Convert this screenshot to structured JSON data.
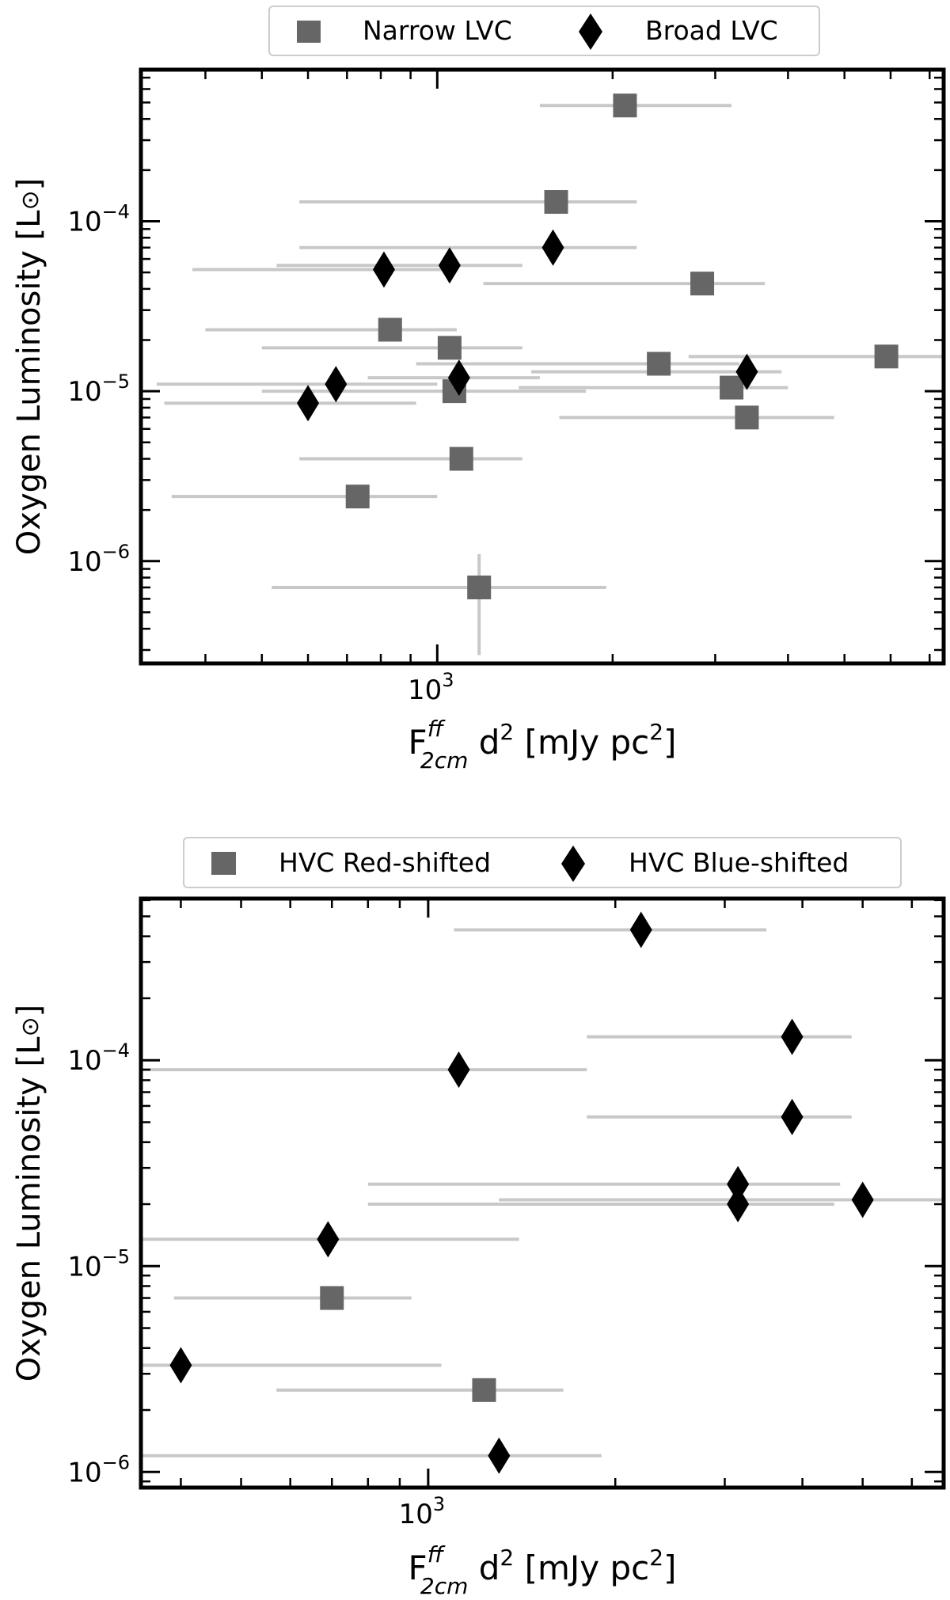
{
  "colors": {
    "square": "#666666",
    "diamond": "#000000",
    "errorbar": "#c8c8c8",
    "frame": "#000000"
  },
  "chart_data": [
    {
      "type": "scatter",
      "xscale": "log",
      "yscale": "log",
      "xlim": [
        310,
        7400
      ],
      "ylim": [
        2.5e-07,
        0.00078
      ],
      "xlabel_main": "F",
      "xlabel_sup": "ff",
      "xlabel_sub": "2cm",
      "xlabel_rest": " d",
      "xlabel_sq": "2",
      "xlabel_unit": " [mJy pc",
      "xlabel_close": "]",
      "ylabel_main": "Oxygen Luminosity [L",
      "ylabel_sun": "⊙",
      "ylabel_close": "]",
      "xticks": [
        {
          "base": "10",
          "exp": "3",
          "value": 1000
        }
      ],
      "yticks": [
        {
          "base": "10",
          "exp": "−4",
          "value": 0.0001
        },
        {
          "base": "10",
          "exp": "−5",
          "value": 1e-05
        },
        {
          "base": "10",
          "exp": "−6",
          "value": 1e-06
        }
      ],
      "legend": {
        "placement": "top",
        "entries": [
          {
            "label": "Narrow LVC",
            "marker": "square"
          },
          {
            "label": "Broad LVC",
            "marker": "diamond"
          }
        ]
      },
      "series": [
        {
          "name": "Narrow LVC",
          "marker": "square",
          "points": [
            {
              "x": 2100,
              "y": 0.00048,
              "xlo": 1500,
              "xhi": 3200
            },
            {
              "x": 1600,
              "y": 0.00013,
              "xlo": 580,
              "xhi": 2200
            },
            {
              "x": 2850,
              "y": 4.3e-05,
              "xlo": 1200,
              "xhi": 3650
            },
            {
              "x": 830,
              "y": 2.3e-05,
              "xlo": 400,
              "xhi": 1080
            },
            {
              "x": 1050,
              "y": 1.8e-05,
              "xlo": 500,
              "xhi": 1400
            },
            {
              "x": 2400,
              "y": 1.45e-05,
              "xlo": 920,
              "xhi": 3300
            },
            {
              "x": 5900,
              "y": 1.6e-05,
              "xlo": 2700,
              "xhi": 8000
            },
            {
              "x": 1070,
              "y": 1e-05,
              "xlo": 500,
              "xhi": 1800
            },
            {
              "x": 3200,
              "y": 1.05e-05,
              "xlo": 1380,
              "xhi": 4000
            },
            {
              "x": 3400,
              "y": 7e-06,
              "xlo": 1620,
              "xhi": 4800
            },
            {
              "x": 1100,
              "y": 4e-06,
              "xlo": 580,
              "xhi": 1400
            },
            {
              "x": 730,
              "y": 2.4e-06,
              "xlo": 350,
              "xhi": 1000
            },
            {
              "x": 1180,
              "y": 7e-07,
              "xlo": 520,
              "xhi": 1950,
              "ylo": 2.8e-07,
              "yhi": 1.1e-06
            }
          ]
        },
        {
          "name": "Broad LVC",
          "marker": "diamond",
          "points": [
            {
              "x": 1580,
              "y": 7e-05,
              "xlo": 580,
              "xhi": 2200
            },
            {
              "x": 810,
              "y": 5.2e-05,
              "xlo": 380,
              "xhi": 1060
            },
            {
              "x": 1050,
              "y": 5.5e-05,
              "xlo": 530,
              "xhi": 1400
            },
            {
              "x": 1090,
              "y": 1.2e-05,
              "xlo": 760,
              "xhi": 1500
            },
            {
              "x": 3400,
              "y": 1.3e-05,
              "xlo": 1450,
              "xhi": 3900
            },
            {
              "x": 670,
              "y": 1.1e-05,
              "xlo": 330,
              "xhi": 1000
            },
            {
              "x": 600,
              "y": 8.5e-06,
              "xlo": 340,
              "xhi": 920
            }
          ]
        }
      ]
    },
    {
      "type": "scatter",
      "xscale": "log",
      "yscale": "log",
      "xlim": [
        345,
        6750
      ],
      "ylim": [
        8.4e-07,
        0.00061
      ],
      "xlabel_main": "F",
      "xlabel_sup": "ff",
      "xlabel_sub": "2cm",
      "xlabel_rest": " d",
      "xlabel_sq": "2",
      "xlabel_unit": " [mJy pc",
      "xlabel_close": "]",
      "ylabel_main": "Oxygen Luminosity [L",
      "ylabel_sun": "⊙",
      "ylabel_close": "]",
      "xticks": [
        {
          "base": "10",
          "exp": "3",
          "value": 1000
        }
      ],
      "yticks": [
        {
          "base": "10",
          "exp": "−4",
          "value": 0.0001
        },
        {
          "base": "10",
          "exp": "−5",
          "value": 1e-05
        },
        {
          "base": "10",
          "exp": "−6",
          "value": 1e-06
        }
      ],
      "legend": {
        "placement": "top",
        "entries": [
          {
            "label": "HVC Red-shifted",
            "marker": "square"
          },
          {
            "label": "HVC Blue-shifted",
            "marker": "diamond"
          }
        ]
      },
      "series": [
        {
          "name": "HVC Red-shifted",
          "marker": "square",
          "points": [
            {
              "x": 700,
              "y": 7e-06,
              "xlo": 390,
              "xhi": 940
            },
            {
              "x": 1230,
              "y": 2.5e-06,
              "xlo": 570,
              "xhi": 1650
            }
          ]
        },
        {
          "name": "HVC Blue-shifted",
          "marker": "diamond",
          "points": [
            {
              "x": 2200,
              "y": 0.00043,
              "xlo": 1100,
              "xhi": 3500
            },
            {
              "x": 3850,
              "y": 0.00013,
              "xlo": 1800,
              "xhi": 4800
            },
            {
              "x": 1120,
              "y": 9e-05,
              "xlo": 345,
              "xhi": 1800
            },
            {
              "x": 3850,
              "y": 5.3e-05,
              "xlo": 1800,
              "xhi": 4800
            },
            {
              "x": 3150,
              "y": 2.5e-05,
              "xlo": 800,
              "xhi": 4600
            },
            {
              "x": 3150,
              "y": 2e-05,
              "xlo": 800,
              "xhi": 4500
            },
            {
              "x": 5000,
              "y": 2.1e-05,
              "xlo": 1300,
              "xhi": 6700
            },
            {
              "x": 690,
              "y": 1.35e-05,
              "xlo": 345,
              "xhi": 1400
            },
            {
              "x": 400,
              "y": 3.3e-06,
              "xlo": 345,
              "xhi": 1050
            },
            {
              "x": 1300,
              "y": 1.2e-06,
              "xlo": 345,
              "xhi": 1900
            }
          ]
        }
      ]
    }
  ]
}
